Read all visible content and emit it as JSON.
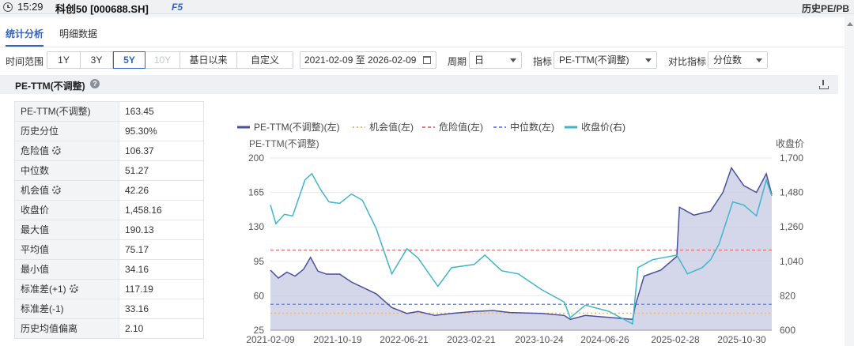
{
  "titlebar": {
    "time": "15:29",
    "title": "科创50 [000688.SH]",
    "hotkey": "F5",
    "right_title": "历史PE/PB"
  },
  "tabs": [
    {
      "label": "统计分析",
      "active": true
    },
    {
      "label": "明细数据",
      "active": false
    }
  ],
  "filters": {
    "range_label": "时间范围",
    "ranges": [
      {
        "label": "1Y",
        "state": "normal"
      },
      {
        "label": "3Y",
        "state": "normal"
      },
      {
        "label": "5Y",
        "state": "active"
      },
      {
        "label": "10Y",
        "state": "disabled"
      },
      {
        "label": "基日以来",
        "state": "normal"
      },
      {
        "label": "自定义",
        "state": "normal"
      }
    ],
    "date_range": "2021-02-09 至 2026-02-09",
    "period_label": "周期",
    "period_value": "日",
    "indicator_label": "指标",
    "indicator_value": "PE-TTM(不调整)",
    "compare_label": "对比指标",
    "compare_value": "分位数"
  },
  "section": {
    "title": "PE-TTM(不调整)"
  },
  "stats": [
    {
      "label": "PE-TTM(不调整)",
      "value": "163.45",
      "gear": false
    },
    {
      "label": "历史分位",
      "value": "95.30%",
      "gear": false
    },
    {
      "label": "危险值",
      "value": "106.37",
      "gear": true
    },
    {
      "label": "中位数",
      "value": "51.27",
      "gear": false
    },
    {
      "label": "机会值",
      "value": "42.26",
      "gear": true
    },
    {
      "label": "收盘价",
      "value": "1,458.16",
      "gear": false
    },
    {
      "label": "最大值",
      "value": "190.13",
      "gear": false
    },
    {
      "label": "平均值",
      "value": "75.17",
      "gear": false
    },
    {
      "label": "最小值",
      "value": "34.16",
      "gear": false
    },
    {
      "label": "标准差(+1)",
      "value": "117.19",
      "gear": true
    },
    {
      "label": "标准差(-1)",
      "value": "33.16",
      "gear": false
    },
    {
      "label": "历史均值偏离",
      "value": "2.10",
      "gear": false
    }
  ],
  "chart_data": {
    "type": "line",
    "left_axis_label": "PE-TTM(不调整)",
    "right_axis_label": "收盘价",
    "left_ylim": [
      25,
      200
    ],
    "left_ticks": [
      "200",
      "165",
      "130",
      "95",
      "60",
      "25"
    ],
    "right_ylim": [
      600,
      1700
    ],
    "right_ticks": [
      "1,700",
      "1,480",
      "1,260",
      "1,040",
      "820",
      "600"
    ],
    "x_ticks": [
      "2021-02-09",
      "2021-10-19",
      "2022-06-21",
      "2023-02-21",
      "2023-10-24",
      "2024-06-26",
      "2025-02-28",
      "2025-10-30"
    ],
    "legend": [
      {
        "name": "PE-TTM(不调整)(左)",
        "color": "#4b4f9a",
        "style": "solid"
      },
      {
        "name": "机会值(左)",
        "color": "#f0b86e",
        "style": "dotted"
      },
      {
        "name": "危险值(左)",
        "color": "#ee7b7b",
        "style": "dashed"
      },
      {
        "name": "中位数(左)",
        "color": "#6f8ff0",
        "style": "dashed"
      },
      {
        "name": "收盘价(右)",
        "color": "#3fb6c8",
        "style": "solid"
      }
    ],
    "reference_lines": {
      "danger": 106.37,
      "median": 51.27,
      "opportunity": 42.26
    },
    "series": [
      {
        "name": "PE-TTM(不调整)(左)",
        "points": [
          [
            "2021-02-09",
            86
          ],
          [
            "2021-03-10",
            78
          ],
          [
            "2021-04-10",
            84
          ],
          [
            "2021-05-10",
            80
          ],
          [
            "2021-06-10",
            87
          ],
          [
            "2021-07-05",
            99
          ],
          [
            "2021-08-01",
            85
          ],
          [
            "2021-09-01",
            82
          ],
          [
            "2021-10-19",
            82
          ],
          [
            "2021-12-01",
            74
          ],
          [
            "2022-01-15",
            68
          ],
          [
            "2022-03-01",
            62
          ],
          [
            "2022-04-27",
            48
          ],
          [
            "2022-06-21",
            42
          ],
          [
            "2022-08-01",
            44
          ],
          [
            "2022-10-01",
            40
          ],
          [
            "2022-12-01",
            42
          ],
          [
            "2023-02-21",
            44
          ],
          [
            "2023-05-01",
            45
          ],
          [
            "2023-07-01",
            43
          ],
          [
            "2023-10-24",
            42
          ],
          [
            "2024-01-15",
            40
          ],
          [
            "2024-02-06",
            36
          ],
          [
            "2024-04-01",
            40
          ],
          [
            "2024-06-26",
            38
          ],
          [
            "2024-09-20",
            36
          ],
          [
            "2024-09-30",
            50
          ],
          [
            "2024-11-01",
            80
          ],
          [
            "2025-01-01",
            86
          ],
          [
            "2025-02-28",
            100
          ],
          [
            "2025-03-10",
            150
          ],
          [
            "2025-05-01",
            142
          ],
          [
            "2025-07-01",
            146
          ],
          [
            "2025-08-15",
            165
          ],
          [
            "2025-09-15",
            190
          ],
          [
            "2025-10-30",
            172
          ],
          [
            "2025-12-15",
            165
          ],
          [
            "2026-01-20",
            184
          ],
          [
            "2026-02-09",
            163
          ]
        ]
      },
      {
        "name": "收盘价(右)",
        "points": [
          [
            "2021-02-09",
            1400
          ],
          [
            "2021-03-01",
            1280
          ],
          [
            "2021-04-01",
            1340
          ],
          [
            "2021-05-01",
            1330
          ],
          [
            "2021-06-15",
            1560
          ],
          [
            "2021-07-10",
            1600
          ],
          [
            "2021-08-10",
            1500
          ],
          [
            "2021-09-10",
            1420
          ],
          [
            "2021-10-19",
            1410
          ],
          [
            "2021-12-01",
            1470
          ],
          [
            "2022-01-10",
            1430
          ],
          [
            "2022-03-01",
            1250
          ],
          [
            "2022-04-27",
            960
          ],
          [
            "2022-06-21",
            1120
          ],
          [
            "2022-08-01",
            1060
          ],
          [
            "2022-10-12",
            880
          ],
          [
            "2022-12-01",
            1000
          ],
          [
            "2023-02-21",
            1020
          ],
          [
            "2023-04-01",
            1080
          ],
          [
            "2023-06-01",
            980
          ],
          [
            "2023-08-01",
            960
          ],
          [
            "2023-10-24",
            860
          ],
          [
            "2024-01-15",
            780
          ],
          [
            "2024-02-06",
            680
          ],
          [
            "2024-04-01",
            760
          ],
          [
            "2024-06-26",
            720
          ],
          [
            "2024-09-20",
            640
          ],
          [
            "2024-10-10",
            1000
          ],
          [
            "2024-12-01",
            1050
          ],
          [
            "2025-02-28",
            1080
          ],
          [
            "2025-04-08",
            960
          ],
          [
            "2025-06-01",
            1000
          ],
          [
            "2025-07-01",
            1050
          ],
          [
            "2025-08-01",
            1150
          ],
          [
            "2025-09-20",
            1420
          ],
          [
            "2025-10-30",
            1400
          ],
          [
            "2025-12-15",
            1330
          ],
          [
            "2026-01-20",
            1560
          ],
          [
            "2026-02-09",
            1458
          ]
        ]
      }
    ]
  }
}
